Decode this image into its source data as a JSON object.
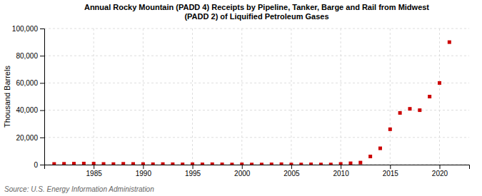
{
  "chart_data": {
    "type": "scatter",
    "title": "Annual Rocky Mountain (PADD 4) Receipts by Pipeline, Tanker, Barge and Rail from Midwest\n(PADD 2) of Liquified Petroleum Gases",
    "ylabel": "Thousand Barrels",
    "source": "Source: U.S. Energy Information Administration",
    "color": "#cc0000",
    "marker": "square",
    "grid": true,
    "x": [
      1981,
      1982,
      1983,
      1984,
      1985,
      1986,
      1987,
      1988,
      1989,
      1990,
      1991,
      1992,
      1993,
      1994,
      1995,
      1996,
      1997,
      1998,
      1999,
      2000,
      2001,
      2002,
      2003,
      2004,
      2005,
      2006,
      2007,
      2008,
      2009,
      2010,
      2011,
      2012,
      2013,
      2014,
      2015,
      2016,
      2017,
      2018,
      2019,
      2020,
      2021
    ],
    "values": [
      500,
      600,
      700,
      800,
      700,
      500,
      400,
      600,
      500,
      400,
      300,
      400,
      300,
      200,
      300,
      200,
      300,
      200,
      100,
      200,
      100,
      100,
      200,
      300,
      100,
      100,
      200,
      100,
      100,
      500,
      1000,
      1500,
      6000,
      12000,
      26000,
      38000,
      41000,
      40000,
      50000,
      60000,
      90000
    ],
    "xlim": [
      1980,
      2023
    ],
    "xticks": [
      1985,
      1990,
      1995,
      2000,
      2005,
      2010,
      2015,
      2020
    ],
    "ylim": [
      0,
      100000
    ],
    "yticks": [
      0,
      {
        "value": 20000,
        "label": "20,000"
      },
      {
        "value": 40000,
        "label": "40,000"
      },
      {
        "value": 60000,
        "label": "60,000"
      },
      {
        "value": 80000,
        "label": "80,000"
      },
      {
        "value": 100000,
        "label": "100,000"
      }
    ]
  }
}
